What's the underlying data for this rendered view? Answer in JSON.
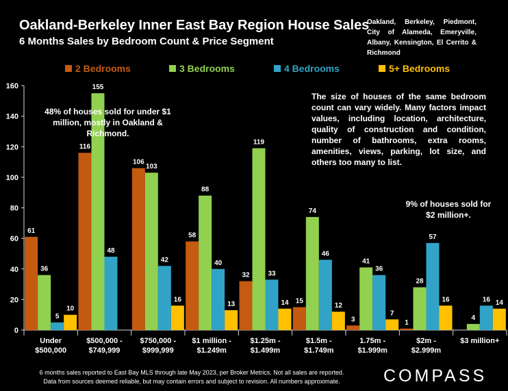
{
  "header": {
    "title": "Oakland-Berkeley Inner East Bay Region House Sales",
    "subtitle": "6 Months Sales by Bedroom Count & Price Segment",
    "region": "Oakland, Berkeley, Piedmont, City of Alameda, Emeryville, Albany, Kensington, El Cerrito & Richmond"
  },
  "annotations": {
    "under_1m": "48% of houses sold for under $1 million, mostly in Oakland & Richmond.",
    "variance": "The size of houses of the same bedroom count can vary widely. Many factors impact values, including location, architecture, quality of construction and condition, number of bathrooms, extra rooms, amenities, views, parking, lot size, and others too many to list.",
    "over_2m": "9% of houses sold for $2 million+."
  },
  "footer": {
    "note_line1": "6 months sales reported to East Bay MLS through late May 2023, per Broker Metrics. Not all sales are reported.",
    "note_line2": "Data from sources deemed reliable, but may contain errors and subject to revision. All numbers approximate.",
    "logo": "COMPASS"
  },
  "chart_data": {
    "type": "bar",
    "categories": [
      [
        "Under",
        "$500,000"
      ],
      [
        "$500,000 -",
        "$749,999"
      ],
      [
        "$750,000 -",
        "$999,999"
      ],
      [
        "$1 million -",
        "$1.249m"
      ],
      [
        "$1.25m -",
        "$1.499m"
      ],
      [
        "$1.5m -",
        "$1.749m"
      ],
      [
        "1.75m -",
        "$1.999m"
      ],
      [
        "$2m -",
        "$2.999m"
      ],
      [
        "$3 million+"
      ]
    ],
    "series": [
      {
        "name": "2 Bedrooms",
        "color": "#C55A11",
        "values": [
          61,
          116,
          106,
          58,
          32,
          15,
          3,
          1,
          null
        ]
      },
      {
        "name": "3 Bedrooms",
        "color": "#92D050",
        "values": [
          36,
          155,
          103,
          88,
          119,
          74,
          41,
          28,
          4
        ]
      },
      {
        "name": "4 Bedrooms",
        "color": "#31A3C6",
        "values": [
          5,
          48,
          42,
          40,
          33,
          46,
          36,
          57,
          16
        ]
      },
      {
        "name": "5+ Bedrooms",
        "color": "#FFC000",
        "values": [
          10,
          null,
          16,
          13,
          14,
          12,
          7,
          16,
          14
        ]
      }
    ],
    "ylim": [
      0,
      160
    ],
    "yticks": [
      0,
      20,
      40,
      60,
      80,
      100,
      120,
      140,
      160
    ],
    "grid": false,
    "legend": "top"
  }
}
